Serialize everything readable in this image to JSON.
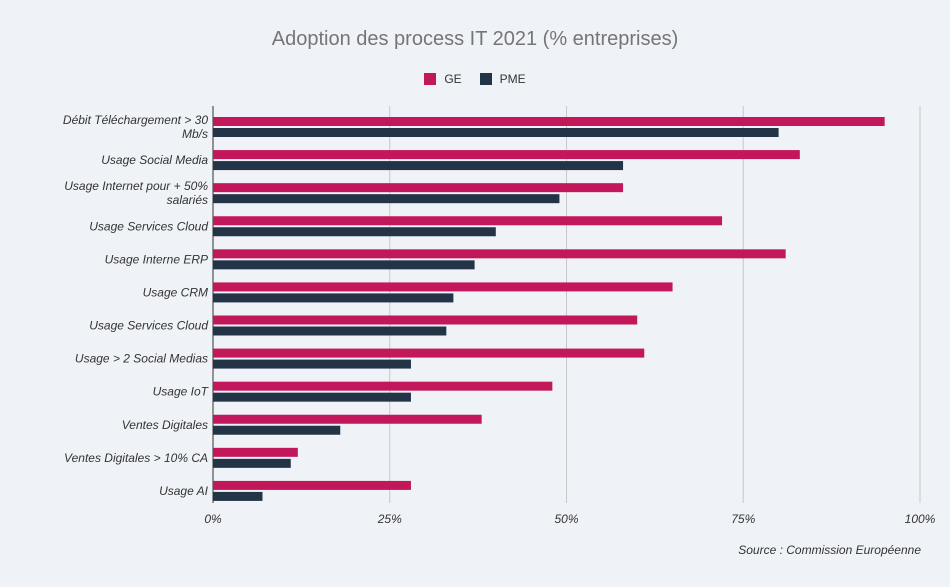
{
  "chart_data": {
    "type": "bar",
    "orientation": "horizontal",
    "title": "Adoption des process IT 2021 (% entreprises)",
    "categories": [
      "Débit Téléchargement > 30 Mb/s",
      "Usage Social Media",
      "Usage Internet pour + 50% salariés",
      "Usage Services Cloud",
      "Usage Interne ERP",
      "Usage CRM",
      "Usage Services Cloud",
      "Usage > 2 Social Medias",
      "Usage IoT",
      "Ventes Digitales",
      "Ventes Digitales > 10% CA",
      "Usage AI"
    ],
    "series": [
      {
        "name": "GE",
        "color": "#c2185b",
        "values": [
          95,
          83,
          58,
          72,
          81,
          65,
          60,
          61,
          48,
          38,
          12,
          28
        ]
      },
      {
        "name": "PME",
        "color": "#243447",
        "values": [
          80,
          58,
          49,
          40,
          37,
          34,
          33,
          28,
          28,
          18,
          11,
          7
        ]
      }
    ],
    "xlim": [
      0,
      100
    ],
    "xticks": [
      "0%",
      "25%",
      "50%",
      "75%",
      "100%"
    ],
    "xlabel": "",
    "ylabel": "",
    "grid": true,
    "legend_position": "top"
  },
  "source": "Source : Commission Européenne"
}
